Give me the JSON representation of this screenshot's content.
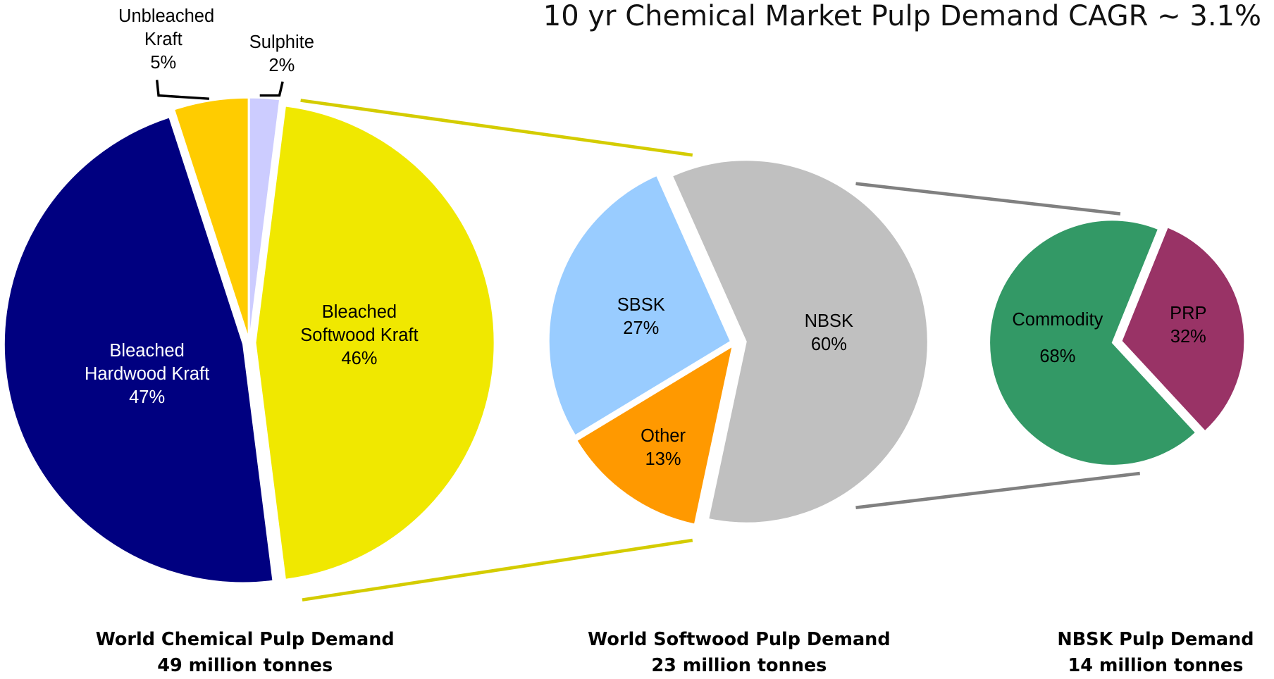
{
  "title": "10 yr Chemical Market Pulp Demand CAGR ~ 3.1%",
  "chart_data": [
    {
      "type": "pie",
      "title": "World Chemical Pulp Demand",
      "subtitle": "49 million tonnes",
      "categories": [
        "Sulphite",
        "Bleached Softwood Kraft",
        "Bleached Hardwood Kraft",
        "Unbleached Kraft"
      ],
      "values": [
        2,
        46,
        47,
        5
      ],
      "value_labels": [
        "2%",
        "46%",
        "47%",
        "5%"
      ],
      "colors": [
        "#ccccff",
        "#f0e800",
        "#000080",
        "#ffcc00"
      ]
    },
    {
      "type": "pie",
      "title": "World Softwood Pulp Demand",
      "subtitle": "23 million tonnes",
      "categories": [
        "NBSK",
        "Other",
        "SBSK"
      ],
      "values": [
        60,
        13,
        27
      ],
      "value_labels": [
        "60%",
        "13%",
        "27%"
      ],
      "colors": [
        "#c0c0c0",
        "#ff9900",
        "#99ccff"
      ]
    },
    {
      "type": "pie",
      "title": "NBSK Pulp Demand",
      "subtitle": "14 million tonnes",
      "categories": [
        "PRP",
        "Commodity"
      ],
      "values": [
        32,
        68
      ],
      "value_labels": [
        "32%",
        "68%"
      ],
      "colors": [
        "#993366",
        "#339966"
      ]
    }
  ]
}
